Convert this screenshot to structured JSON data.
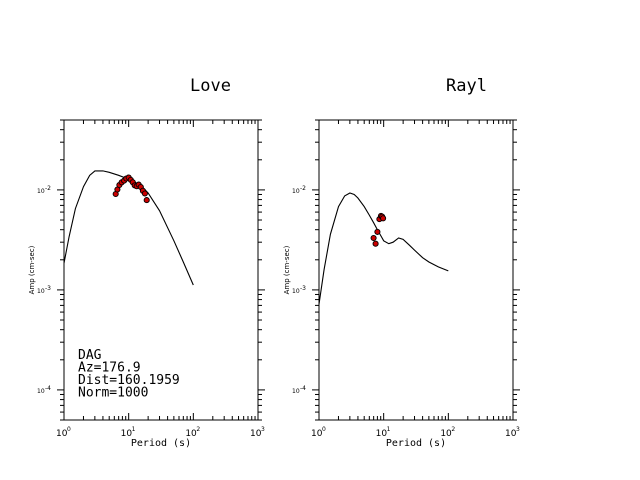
{
  "chart_data": [
    {
      "type": "line",
      "title": "Love",
      "xlabel": "Period (s)",
      "ylabel": "Amp (cm-sec)",
      "x_scale": "log",
      "y_scale": "log",
      "xlim": [
        1,
        1000
      ],
      "ylim": [
        5e-05,
        0.05
      ],
      "x_ticks": [
        {
          "value": 1,
          "base": "10",
          "exp": "0"
        },
        {
          "value": 10,
          "base": "10",
          "exp": "1"
        },
        {
          "value": 100,
          "base": "10",
          "exp": "2"
        },
        {
          "value": 1000,
          "base": "10",
          "exp": "3"
        }
      ],
      "y_ticks": [
        {
          "value": 0.01,
          "base": "10",
          "exp": "-2"
        },
        {
          "value": 0.001,
          "base": "10",
          "exp": "-3"
        },
        {
          "value": 0.0001,
          "base": "10",
          "exp": "-4"
        }
      ],
      "series": [
        {
          "kind": "line",
          "color": "#000000",
          "x": [
            1.0,
            1.2,
            1.5,
            2.0,
            2.5,
            3.0,
            4.0,
            5.0,
            7.0,
            10.0,
            13.0,
            16.0,
            20.0,
            30.0,
            50.0,
            70.0,
            100.0
          ],
          "y": [
            0.00185,
            0.0034,
            0.0065,
            0.0108,
            0.014,
            0.0155,
            0.0155,
            0.015,
            0.014,
            0.0128,
            0.0118,
            0.0108,
            0.0093,
            0.0062,
            0.0031,
            0.0019,
            0.00112
          ]
        },
        {
          "kind": "points",
          "color": "#cc0000",
          "x": [
            6.3,
            6.7,
            7.2,
            7.8,
            8.5,
            9.2,
            10.0,
            10.8,
            11.6,
            12.4,
            13.3,
            14.3,
            15.4,
            16.6,
            17.8,
            19.0
          ],
          "y": [
            0.0091,
            0.0101,
            0.0112,
            0.0119,
            0.0124,
            0.013,
            0.0133,
            0.0126,
            0.0119,
            0.0111,
            0.0109,
            0.0113,
            0.0107,
            0.0098,
            0.0092,
            0.0079
          ]
        }
      ],
      "annotation": [
        "DAG",
        "Az=176.9",
        "Dist=160.1959",
        "Norm=1000"
      ]
    },
    {
      "type": "line",
      "title": "Rayl",
      "xlabel": "Period (s)",
      "ylabel": "Amp (cm-sec)",
      "x_scale": "log",
      "y_scale": "log",
      "xlim": [
        1,
        1000
      ],
      "ylim": [
        5e-05,
        0.05
      ],
      "x_ticks": [
        {
          "value": 1,
          "base": "10",
          "exp": "0"
        },
        {
          "value": 10,
          "base": "10",
          "exp": "1"
        },
        {
          "value": 100,
          "base": "10",
          "exp": "2"
        },
        {
          "value": 1000,
          "base": "10",
          "exp": "3"
        }
      ],
      "y_ticks": [
        {
          "value": 0.01,
          "base": "10",
          "exp": "-2"
        },
        {
          "value": 0.001,
          "base": "10",
          "exp": "-3"
        },
        {
          "value": 0.0001,
          "base": "10",
          "exp": "-4"
        }
      ],
      "series": [
        {
          "kind": "line",
          "color": "#000000",
          "x": [
            1.0,
            1.2,
            1.5,
            2.0,
            2.5,
            3.0,
            3.5,
            4.0,
            5.0,
            6.0,
            7.0,
            8.0,
            9.0,
            10.0,
            12.0,
            14.0,
            17.0,
            20.0,
            25.0,
            30.0,
            40.0,
            50.0,
            70.0,
            100.0
          ],
          "y": [
            0.00072,
            0.0016,
            0.0036,
            0.0068,
            0.0087,
            0.0093,
            0.009,
            0.0083,
            0.0068,
            0.0056,
            0.0047,
            0.004,
            0.0035,
            0.0031,
            0.0029,
            0.003,
            0.0033,
            0.0032,
            0.0028,
            0.0025,
            0.0021,
            0.0019,
            0.0017,
            0.00155
          ]
        },
        {
          "kind": "points",
          "color": "#cc0000",
          "x": [
            7.0,
            7.5,
            8.0,
            8.6,
            9.1,
            9.5,
            9.8
          ],
          "y": [
            0.0033,
            0.0029,
            0.0038,
            0.0051,
            0.0055,
            0.0054,
            0.0052
          ]
        }
      ],
      "annotation": []
    }
  ]
}
